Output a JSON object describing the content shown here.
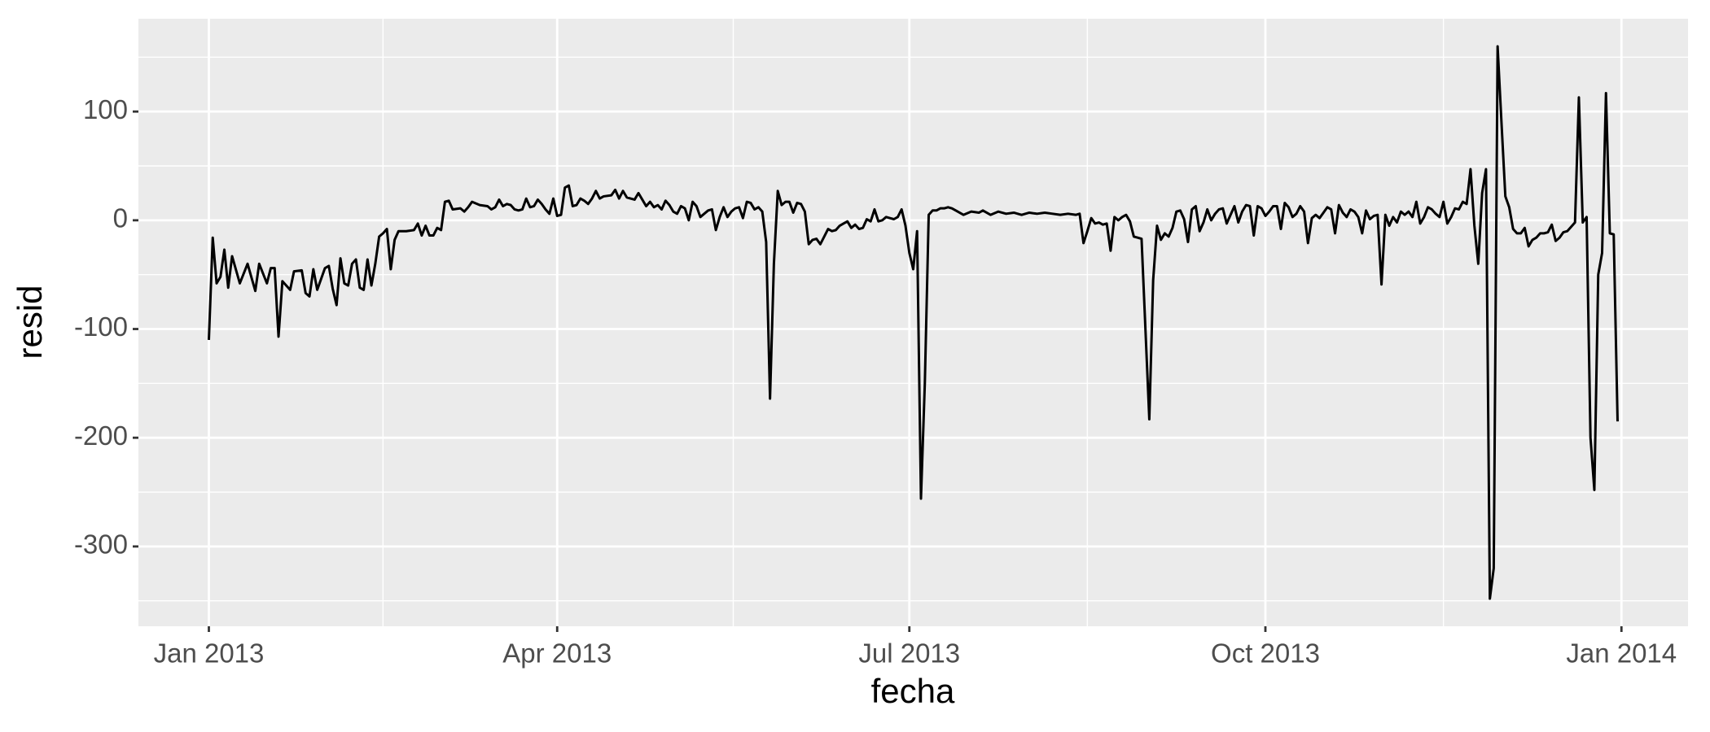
{
  "chart_data": {
    "type": "line",
    "xlabel": "fecha",
    "ylabel": "resid",
    "color": "#000000",
    "x": [
      0,
      1,
      2,
      3,
      4,
      5,
      6,
      8,
      10,
      12,
      13,
      15,
      16,
      17,
      18,
      19,
      21,
      22,
      24,
      25,
      26,
      27,
      28,
      30,
      31,
      32,
      33,
      34,
      35,
      36,
      37,
      38,
      39,
      40,
      41,
      42,
      43,
      44,
      45,
      46,
      47,
      48,
      49,
      51,
      53,
      54,
      55,
      56,
      57,
      58,
      59,
      60,
      61,
      62,
      63,
      65,
      66,
      67,
      68,
      70,
      72,
      73,
      74,
      75,
      76,
      77,
      78,
      79,
      80,
      81,
      82,
      83,
      84,
      85,
      86,
      87,
      88,
      89,
      90,
      91,
      92,
      93,
      94,
      95,
      96,
      97,
      98,
      99,
      100,
      101,
      102,
      104,
      105,
      106,
      107,
      108,
      110,
      111,
      112,
      113,
      114,
      115,
      116,
      117,
      118,
      119,
      120,
      121,
      122,
      123,
      124,
      125,
      126,
      127,
      128,
      129,
      130,
      131,
      132,
      133,
      134,
      135,
      136,
      137,
      138,
      139,
      140,
      141,
      142,
      143,
      144,
      145,
      146,
      147,
      148,
      149,
      150,
      151,
      152,
      153,
      154,
      155,
      156,
      157,
      158,
      159,
      160,
      161,
      162,
      163,
      164,
      165,
      166,
      167,
      168,
      169,
      170,
      171,
      172,
      173,
      174,
      175,
      176,
      177,
      178,
      179,
      180,
      181,
      182,
      183,
      184,
      185,
      186,
      187,
      188,
      189,
      190,
      191,
      192,
      193,
      195,
      197,
      199,
      200,
      202,
      204,
      206,
      208,
      210,
      212,
      214,
      216,
      218,
      220,
      222,
      224,
      225,
      226,
      227,
      228,
      229,
      230,
      231,
      232,
      233,
      234,
      235,
      236,
      237,
      238,
      239,
      240,
      241,
      243,
      244,
      245,
      246,
      247,
      248,
      249,
      250,
      251,
      252,
      253,
      254,
      255,
      256,
      257,
      258,
      259,
      260,
      261,
      262,
      263,
      264,
      265,
      266,
      267,
      268,
      269,
      270,
      271,
      272,
      273,
      274,
      275,
      276,
      277,
      278,
      279,
      280,
      281,
      282,
      283,
      284,
      285,
      286,
      287,
      288,
      289,
      290,
      291,
      292,
      293,
      294,
      295,
      296,
      297,
      298,
      299,
      300,
      301,
      302,
      303,
      304,
      305,
      306,
      307,
      308,
      309,
      310,
      311,
      312,
      313,
      314,
      315,
      316,
      317,
      318,
      319,
      320,
      321,
      322,
      323,
      324,
      325,
      326,
      327,
      328,
      329,
      330,
      331,
      332,
      333,
      334,
      335,
      336,
      337,
      338,
      339,
      340,
      341,
      342,
      343,
      344,
      345,
      346,
      347,
      348,
      349,
      350,
      351,
      352,
      353,
      354,
      355,
      356,
      357,
      358,
      359,
      360,
      361,
      362,
      363,
      364
    ],
    "values": [
      -110,
      -16,
      -58,
      -52,
      -27,
      -62,
      -33,
      -58,
      -40,
      -65,
      -40,
      -58,
      -44,
      -44,
      -107,
      -56,
      -64,
      -47,
      -46,
      -67,
      -70,
      -45,
      -64,
      -44,
      -42,
      -63,
      -78,
      -35,
      -58,
      -60,
      -40,
      -36,
      -62,
      -64,
      -36,
      -60,
      -40,
      -15,
      -12,
      -8,
      -45,
      -18,
      -10,
      -10,
      -9,
      -3,
      -14,
      -5,
      -14,
      -14,
      -7,
      -9,
      17,
      18,
      10,
      11,
      8,
      12,
      17,
      14,
      13,
      10,
      12,
      19,
      13,
      15,
      14,
      10,
      9,
      10,
      20,
      12,
      13,
      19,
      15,
      10,
      6,
      20,
      4,
      5,
      30,
      32,
      13,
      14,
      20,
      18,
      15,
      20,
      27,
      20,
      22,
      23,
      28,
      20,
      27,
      21,
      19,
      25,
      19,
      13,
      17,
      12,
      14,
      10,
      18,
      14,
      8,
      6,
      13,
      11,
      0,
      17,
      13,
      3,
      6,
      9,
      10,
      -9,
      3,
      12,
      3,
      8,
      11,
      12,
      2,
      17,
      16,
      10,
      12,
      8,
      -20,
      -164,
      -40,
      27,
      14,
      17,
      17,
      7,
      16,
      15,
      8,
      -22,
      -18,
      -17,
      -22,
      -15,
      -8,
      -10,
      -9,
      -5,
      -3,
      -1,
      -7,
      -4,
      -8,
      -7,
      1,
      -1,
      10,
      -1,
      0,
      3,
      2,
      1,
      3,
      10,
      -5,
      -30,
      -45,
      -10,
      -256,
      -150,
      5,
      9,
      9,
      11,
      11,
      12,
      11,
      9,
      5,
      8,
      7,
      9,
      5,
      8,
      6,
      7,
      5,
      7,
      6,
      7,
      6,
      5,
      6,
      5,
      6,
      -21,
      -10,
      2,
      -3,
      -2,
      -4,
      -3,
      -28,
      3,
      0,
      3,
      5,
      -1,
      -15,
      -16,
      -17,
      -183,
      -55,
      -5,
      -18,
      -12,
      -15,
      -7,
      8,
      9,
      1,
      -20,
      10,
      13,
      -10,
      -2,
      10,
      0,
      6,
      10,
      11,
      -3,
      5,
      13,
      -2,
      8,
      14,
      13,
      -14,
      13,
      11,
      4,
      8,
      13,
      13,
      -8,
      16,
      12,
      3,
      6,
      13,
      8,
      -21,
      2,
      5,
      2,
      7,
      12,
      10,
      -12,
      14,
      7,
      3,
      10,
      8,
      3,
      -12,
      9,
      1,
      4,
      5,
      -59,
      5,
      -5,
      3,
      -2,
      8,
      5,
      8,
      3,
      17,
      -3,
      3,
      12,
      10,
      6,
      3,
      17,
      -3,
      3,
      11,
      10,
      17,
      15,
      47,
      -5,
      -40,
      25,
      47,
      -348,
      -320,
      160,
      90,
      22,
      12,
      -8,
      -12,
      -12,
      -7,
      -24,
      -18,
      -16,
      -12,
      -12,
      -11,
      -4,
      -19,
      -16,
      -11,
      -10,
      -6,
      -2,
      113,
      -2,
      3,
      -200,
      -248,
      -50,
      -30,
      117,
      -12,
      -13,
      -185
    ],
    "xlim": [
      -18.2,
      382.2
    ],
    "xticks": [
      {
        "value": 0,
        "label": "Jan 2013"
      },
      {
        "value": 90,
        "label": "Apr 2013"
      },
      {
        "value": 181,
        "label": "Jul 2013"
      },
      {
        "value": 273,
        "label": "Oct 2013"
      },
      {
        "value": 365,
        "label": "Jan 2014"
      }
    ],
    "ylim": [
      -373.4,
      185.4
    ],
    "yticks": [
      -300,
      -200,
      -100,
      0,
      100
    ],
    "grid": true
  }
}
